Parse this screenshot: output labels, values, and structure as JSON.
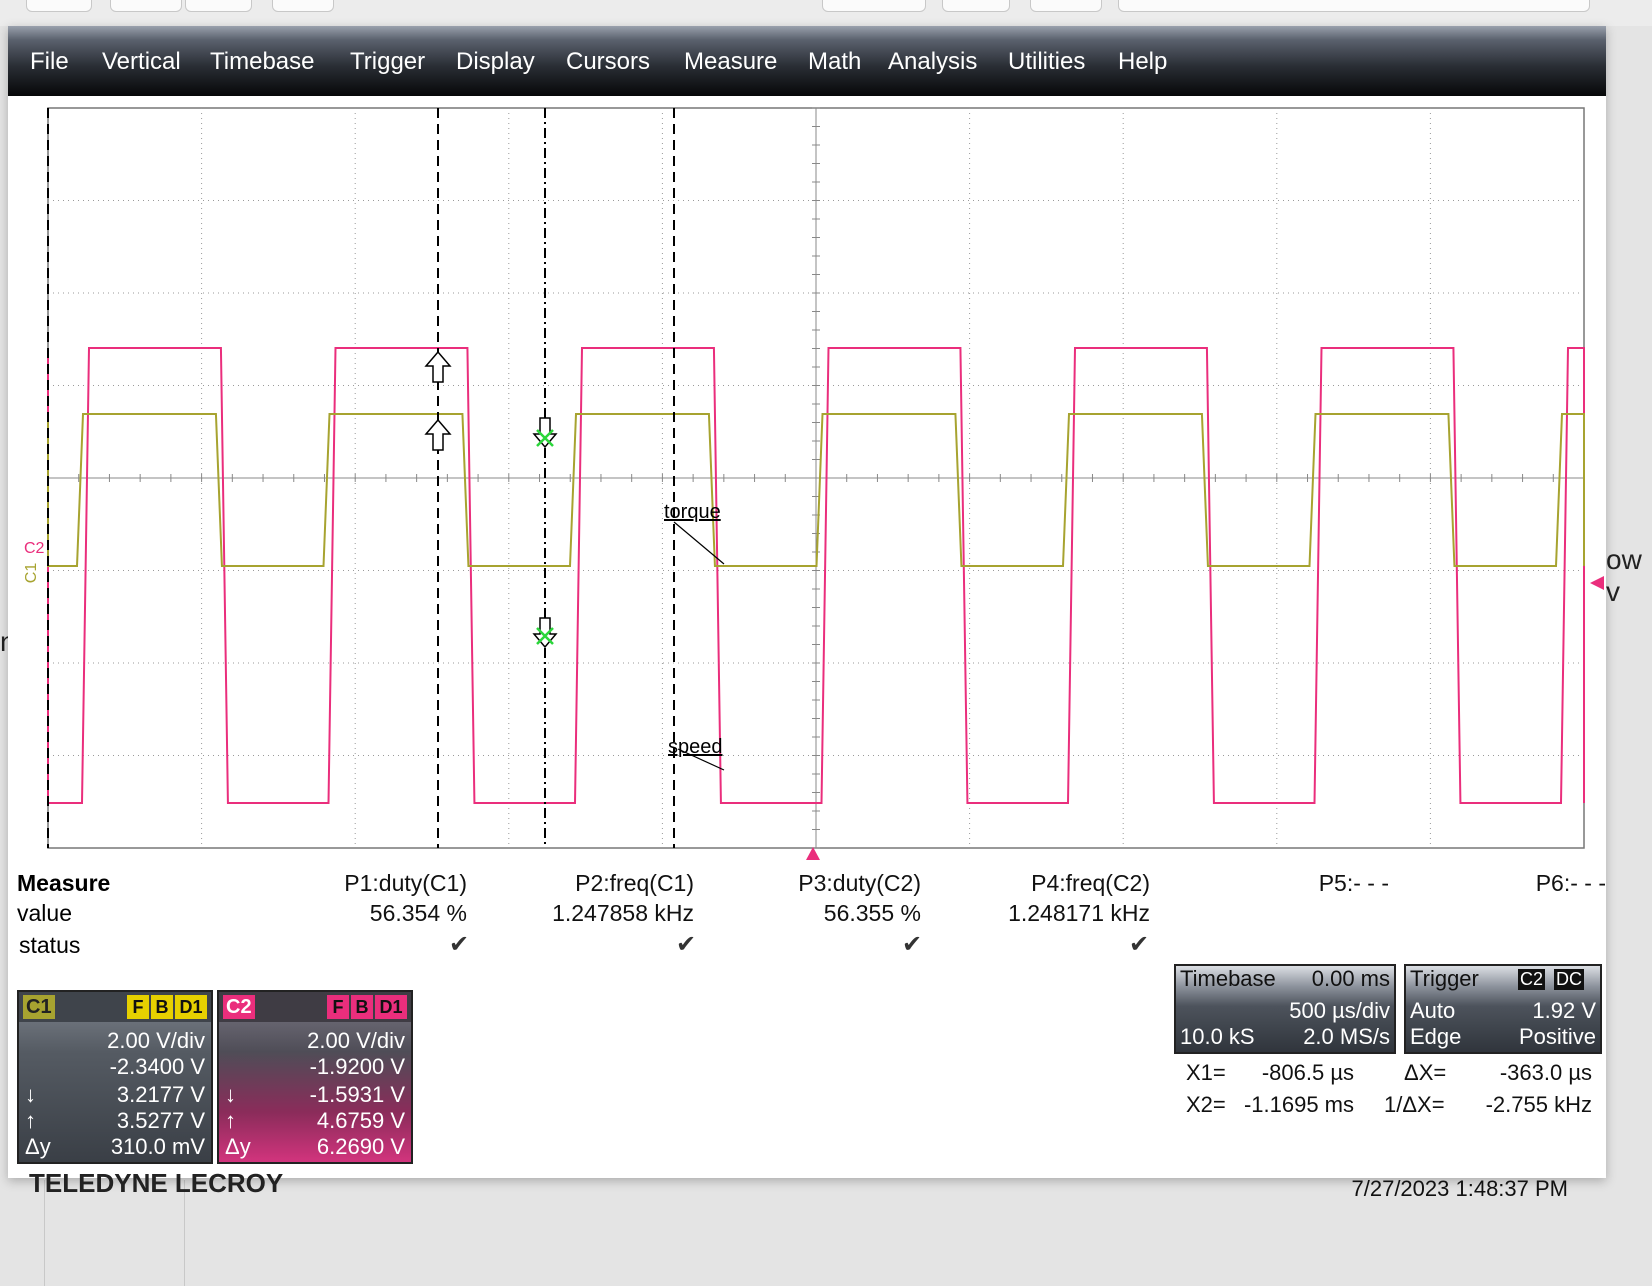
{
  "menu": [
    "File",
    "Vertical",
    "Timebase",
    "Trigger",
    "Display",
    "Cursors",
    "Measure",
    "Math",
    "Analysis",
    "Utilities",
    "Help"
  ],
  "trace_labels": {
    "torque": "torque",
    "speed": "speed"
  },
  "channel_edge_labels": {
    "c2": "C2",
    "c1": "C1"
  },
  "colors": {
    "c1": "#a7a330",
    "c2": "#ea2e7c",
    "grid": "#9a9a9a",
    "cursor": "#000000",
    "marker": "#2ad63a"
  },
  "measure": {
    "title": "Measure",
    "row_value": "value",
    "row_status": "status",
    "params": [
      {
        "label": "P1:duty(C1)",
        "value": "56.354 %",
        "ok": true
      },
      {
        "label": "P2:freq(C1)",
        "value": "1.247858 kHz",
        "ok": true
      },
      {
        "label": "P3:duty(C2)",
        "value": "56.355 %",
        "ok": true
      },
      {
        "label": "P4:freq(C2)",
        "value": "1.248171 kHz",
        "ok": true
      },
      {
        "label": "P5:- - -",
        "value": "",
        "ok": false
      },
      {
        "label": "P6:- - -",
        "value": "",
        "ok": false
      }
    ],
    "check_glyph": "✔"
  },
  "c1": {
    "name": "C1",
    "flags": [
      "F",
      "B",
      "D1"
    ],
    "vdiv": "2.00 V/div",
    "offset": "-2.3400 V",
    "down": "3.2177 V",
    "up": "3.5277 V",
    "dy": "310.0 mV",
    "down_sym": "↓",
    "up_sym": "↑",
    "dy_sym": "Δy"
  },
  "c2": {
    "name": "C2",
    "flags": [
      "F",
      "B",
      "D1"
    ],
    "vdiv": "2.00 V/div",
    "offset": "-1.9200 V",
    "down": "-1.5931 V",
    "up": "4.6759 V",
    "dy": "6.2690 V",
    "down_sym": "↓",
    "up_sym": "↑",
    "dy_sym": "Δy"
  },
  "timebase": {
    "label": "Timebase",
    "delay": "0.00 ms",
    "tdiv": "500 µs/div",
    "samples": "10.0 kS",
    "rate": "2.0 MS/s"
  },
  "trigger": {
    "label": "Trigger",
    "src": "C2",
    "coupling": "DC",
    "mode": "Auto",
    "level": "1.92 V",
    "type": "Edge",
    "slope": "Positive"
  },
  "cursors": {
    "x1_label": "X1=",
    "x1": "-806.5 µs",
    "dx_label": "ΔX=",
    "dx": "-363.0 µs",
    "x2_label": "X2=",
    "x2": "-1.1695 ms",
    "inv_label": "1/ΔX=",
    "inv": "-2.755 kHz"
  },
  "brand": "TELEDYNE LECROY",
  "timestamp": "7/27/2023 1:48:37 PM",
  "background_text": {
    "right": "ow v",
    "left": "n"
  }
}
